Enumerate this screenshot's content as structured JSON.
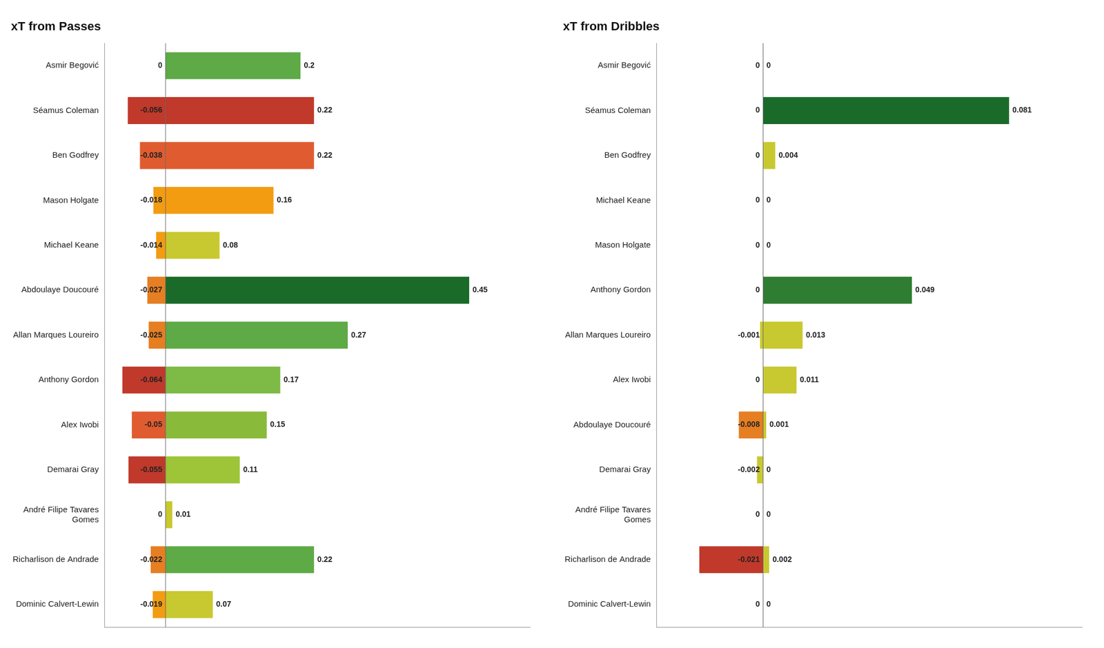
{
  "chart_data": [
    {
      "type": "bar",
      "orientation": "horizontal",
      "title": "xT from Passes",
      "categories": [
        "Asmir Begović",
        "Séamus Coleman",
        "Ben Godfrey",
        "Mason Holgate",
        "Michael Keane",
        "Abdoulaye Doucouré",
        "Allan Marques Loureiro",
        "Anthony Gordon",
        "Alex Iwobi",
        "Demarai Gray",
        "André Filipe Tavares\nGomes",
        "Richarlison de Andrade",
        "Dominic Calvert-Lewin"
      ],
      "series": [
        {
          "values": [
            0.0,
            -0.056,
            -0.038,
            -0.018,
            -0.014,
            -0.027,
            -0.025,
            -0.064,
            -0.05,
            -0.055,
            0.0,
            -0.022,
            -0.019
          ],
          "colors": [
            "#ffffff",
            "#c0392b",
            "#e05c30",
            "#f39c12",
            "#f39c12",
            "#e67e22",
            "#e67e22",
            "#c0392b",
            "#e05c30",
            "#c0392b",
            "#ffffff",
            "#e67e22",
            "#f39c12"
          ]
        },
        {
          "values": [
            0.2,
            0.22,
            0.22,
            0.16,
            0.08,
            0.45,
            0.27,
            0.17,
            0.15,
            0.11,
            0.01,
            0.22,
            0.07
          ],
          "colors": [
            "#5daa46",
            "#c0392b",
            "#e05c30",
            "#f39c12",
            "#c8c830",
            "#1a6b2a",
            "#5daa46",
            "#7dba46",
            "#8aba3a",
            "#9ec438",
            "#c8c830",
            "#5daa46",
            "#c8c830"
          ]
        }
      ],
      "xlim": [
        -0.09,
        0.54
      ],
      "grid": false,
      "data_labels": true,
      "tick_labels": "y"
    },
    {
      "type": "bar",
      "orientation": "horizontal",
      "title": "xT from Dribbles",
      "categories": [
        "Asmir Begović",
        "Séamus Coleman",
        "Ben Godfrey",
        "Michael Keane",
        "Mason Holgate",
        "Anthony Gordon",
        "Allan Marques Loureiro",
        "Alex Iwobi",
        "Abdoulaye Doucouré",
        "Demarai Gray",
        "André Filipe Tavares\nGomes",
        "Richarlison de Andrade",
        "Dominic Calvert-Lewin"
      ],
      "series": [
        {
          "values": [
            0.0,
            0.0,
            0.0,
            0.0,
            0.0,
            0.0,
            -0.001,
            0.0,
            -0.008,
            -0.002,
            0.0,
            -0.021,
            0.0
          ],
          "colors": [
            "#ffffff",
            "#ffffff",
            "#ffffff",
            "#ffffff",
            "#ffffff",
            "#ffffff",
            "#c8c830",
            "#ffffff",
            "#e67e22",
            "#c8c830",
            "#ffffff",
            "#c0392b",
            "#ffffff"
          ]
        },
        {
          "values": [
            0.0,
            0.081,
            0.004,
            0.0,
            0.0,
            0.049,
            0.013,
            0.011,
            0.001,
            0.0,
            0.0,
            0.002,
            0.0
          ],
          "colors": [
            "#ffffff",
            "#1a6b2a",
            "#c8c830",
            "#ffffff",
            "#ffffff",
            "#2e7d32",
            "#c8c830",
            "#c8c830",
            "#c8c830",
            "#ffffff",
            "#ffffff",
            "#c8c830",
            "#ffffff"
          ]
        }
      ],
      "xlim": [
        -0.035,
        0.105
      ],
      "grid": false,
      "data_labels": true,
      "tick_labels": "y"
    }
  ]
}
